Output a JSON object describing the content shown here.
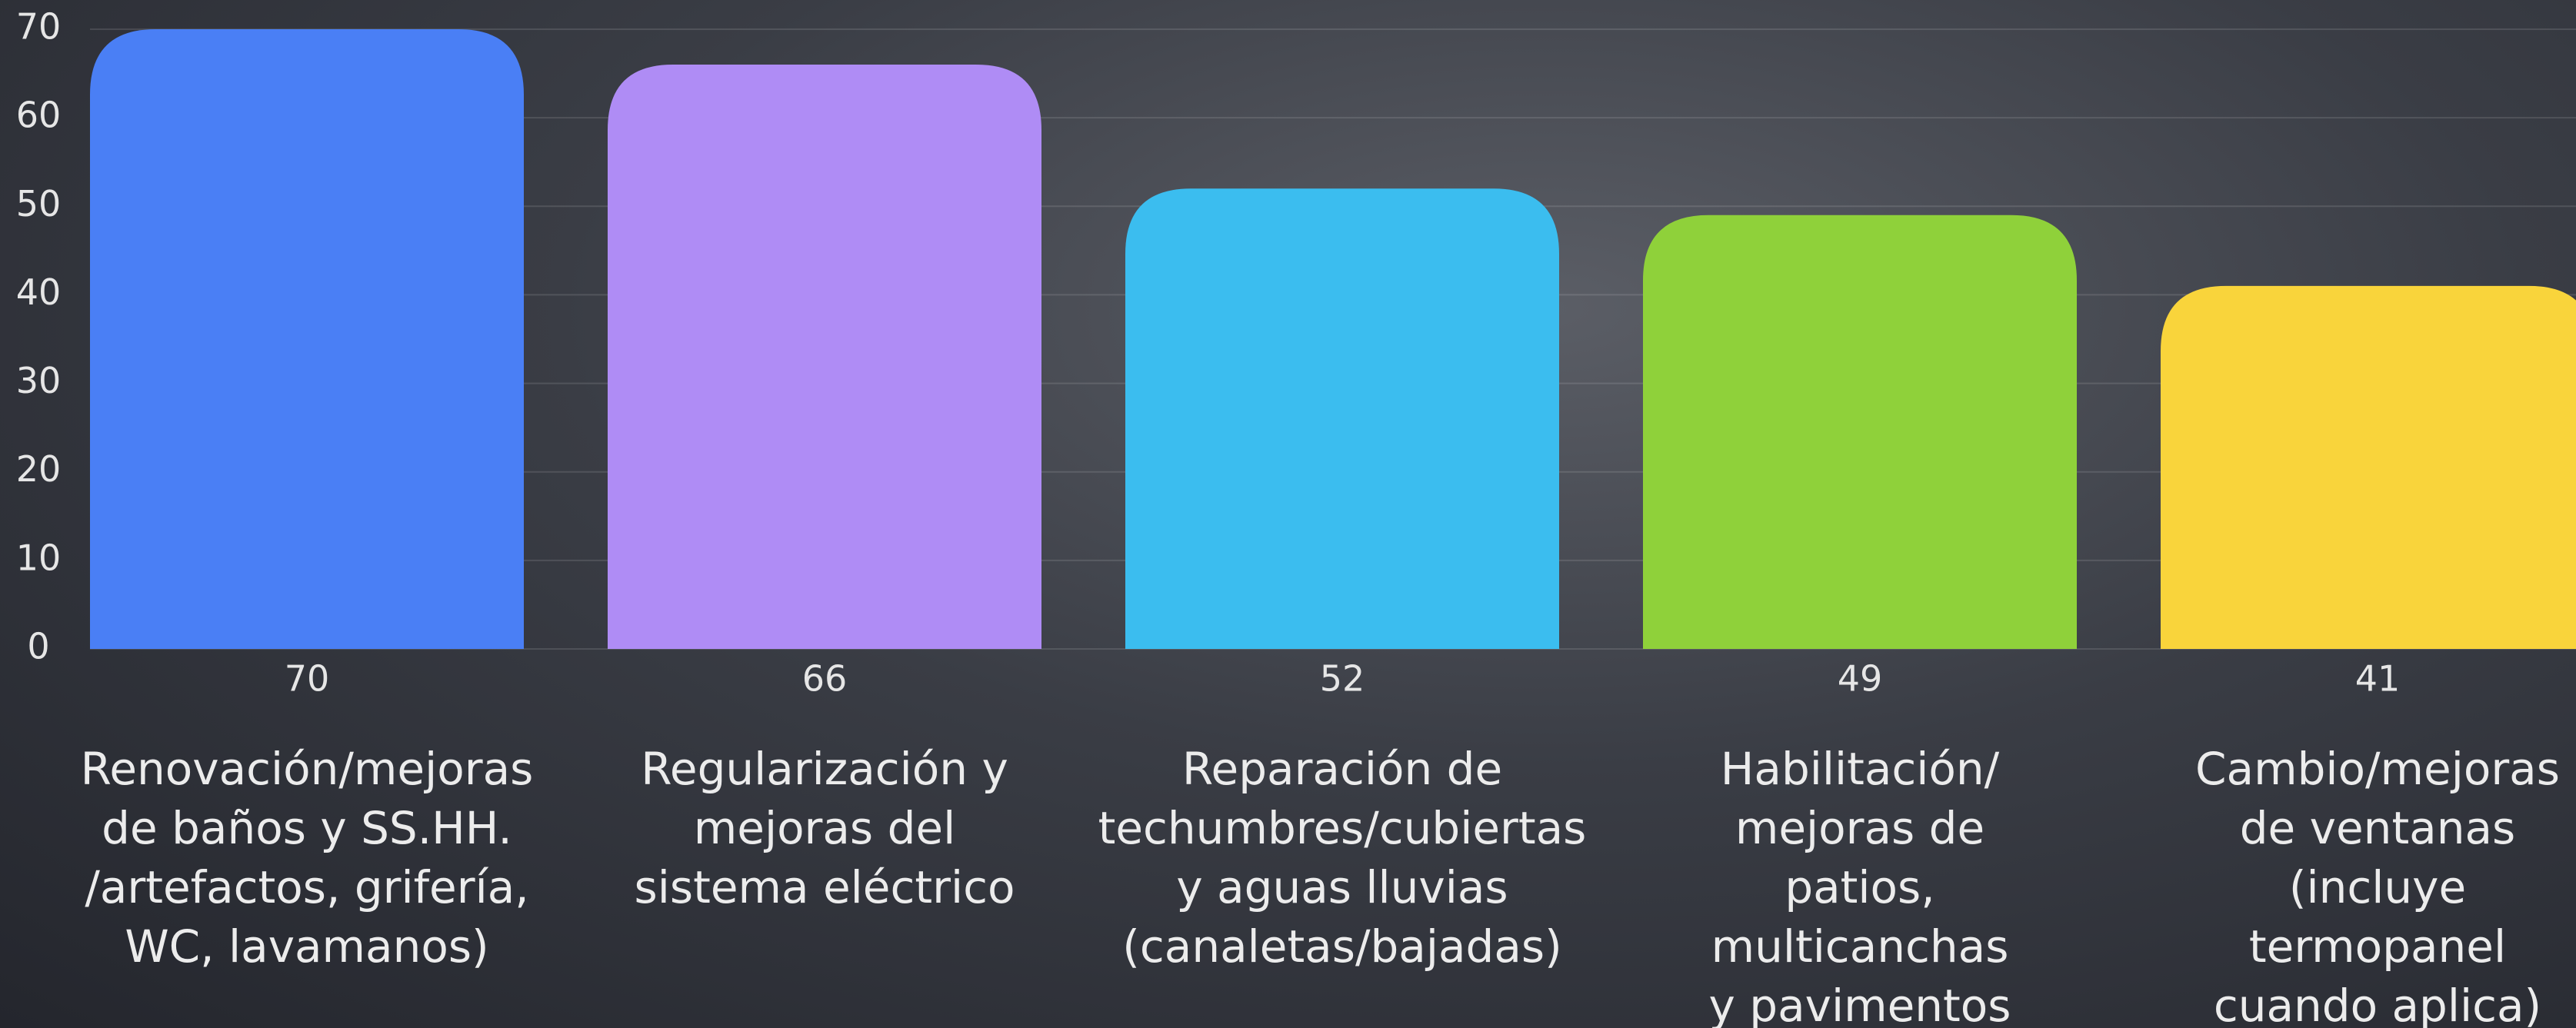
{
  "chart_data": {
    "type": "bar",
    "categories": [
      "Renovación/mejoras\nde baños y SS.HH.\n/artefactos, grifería,\nWC, lavamanos)",
      "Regularización y\nmejoras del\nsistema eléctrico",
      "Reparación de\ntechumbres/cubiertas\ny aguas lluvias\n(canaletas/bajadas)",
      "Habilitación/\nmejoras de\npatios,\nmulticanchas\ny pavimentos",
      "Cambio/mejoras\nde ventanas\n(incluye\ntermopanel\ncuando aplica)"
    ],
    "values": [
      70,
      66,
      52,
      49,
      41
    ],
    "colors": [
      "#4a7ff5",
      "#af8cf5",
      "#3bbdef",
      "#8fd13a",
      "#f9d43b"
    ],
    "ylim": [
      0,
      70
    ],
    "yticks": [
      0,
      10,
      20,
      30,
      40,
      50,
      60,
      70
    ],
    "grid": true
  }
}
